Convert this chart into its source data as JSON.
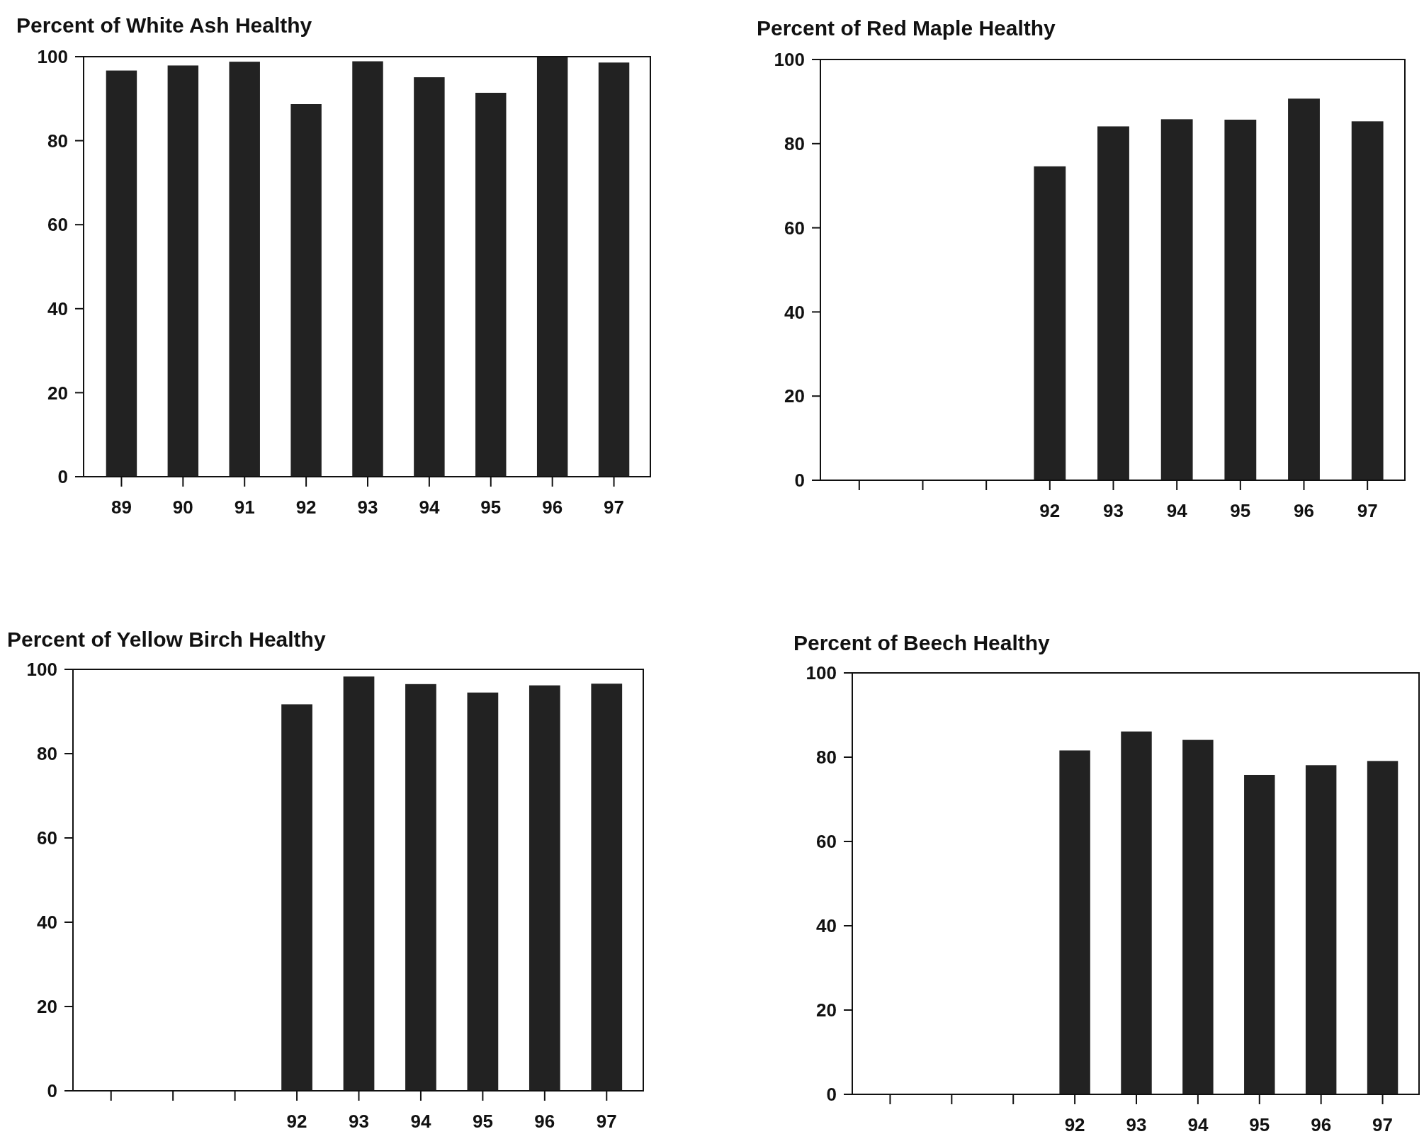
{
  "chart_data": [
    {
      "type": "bar",
      "title": "Percent of White Ash Healthy",
      "categories": [
        "89",
        "90",
        "91",
        "92",
        "93",
        "94",
        "95",
        "96",
        "97"
      ],
      "values": [
        96.7,
        97.9,
        98.8,
        88.7,
        98.9,
        95.1,
        91.4,
        100,
        98.6
      ],
      "color": "#222222",
      "ylim": [
        0,
        100
      ],
      "yticks": [
        0,
        20,
        40,
        60,
        80,
        100
      ]
    },
    {
      "type": "bar",
      "title": "Percent of Red Maple Healthy",
      "categories": [
        null,
        null,
        null,
        "92",
        "93",
        "94",
        "95",
        "96",
        "97"
      ],
      "values": [
        null,
        null,
        null,
        74.6,
        84.1,
        85.8,
        85.7,
        90.7,
        85.3
      ],
      "color": "#222222",
      "ylim": [
        0,
        100
      ],
      "yticks": [
        0,
        20,
        40,
        60,
        80,
        100
      ]
    },
    {
      "type": "bar",
      "title": "Percent of Yellow Birch Healthy",
      "categories": [
        null,
        null,
        null,
        "92",
        "93",
        "94",
        "95",
        "96",
        "97"
      ],
      "values": [
        null,
        null,
        null,
        91.7,
        98.3,
        96.5,
        94.5,
        96.2,
        96.6
      ],
      "color": "#222222",
      "ylim": [
        0,
        100
      ],
      "yticks": [
        0,
        20,
        40,
        60,
        80,
        100
      ]
    },
    {
      "type": "bar",
      "title": "Percent of Beech Healthy",
      "categories": [
        null,
        null,
        null,
        "92",
        "93",
        "94",
        "95",
        "96",
        "97"
      ],
      "values": [
        null,
        null,
        null,
        81.6,
        86.1,
        84.1,
        75.8,
        78.1,
        79.1
      ],
      "color": "#222222",
      "ylim": [
        0,
        100
      ],
      "yticks": [
        0,
        20,
        40,
        60,
        80,
        100
      ]
    }
  ]
}
